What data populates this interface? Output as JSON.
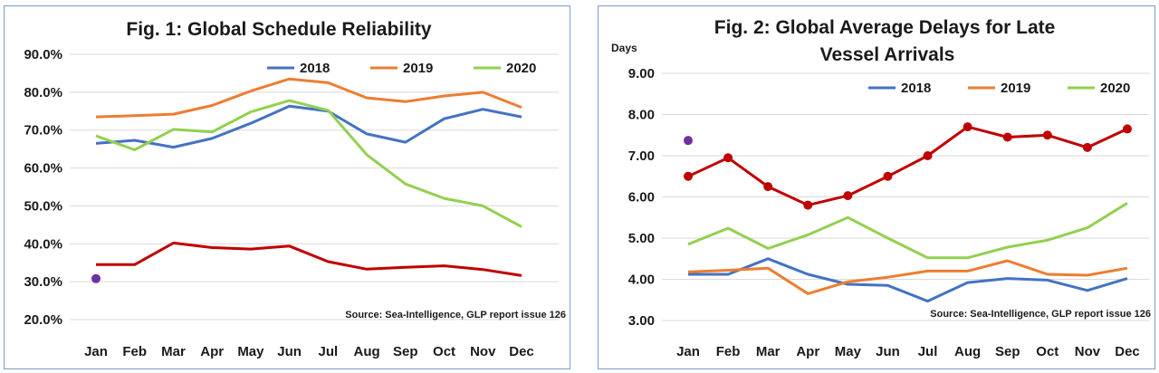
{
  "chart_data": [
    {
      "type": "line",
      "title": "Fig. 1: Global Schedule Reliability",
      "ylabel": "",
      "xlabel": "",
      "ylim": [
        20,
        90
      ],
      "y_ticks": [
        "90.0%",
        "80.0%",
        "70.0%",
        "60.0%",
        "50.0%",
        "40.0%",
        "30.0%",
        "20.0%"
      ],
      "y_tick_values": [
        90,
        80,
        70,
        60,
        50,
        40,
        30,
        20
      ],
      "categories": [
        "Jan",
        "Feb",
        "Mar",
        "Apr",
        "May",
        "Jun",
        "Jul",
        "Aug",
        "Sep",
        "Oct",
        "Nov",
        "Dec"
      ],
      "legend": [
        "2018",
        "2019",
        "2020"
      ],
      "source": "Source: Sea-Intelligence, GLP report issue 126",
      "series": [
        {
          "name": "2018",
          "color": "#4472c4",
          "values": [
            66.5,
            67.3,
            65.5,
            67.8,
            71.8,
            76.3,
            75.0,
            69.0,
            66.8,
            73.0,
            75.5,
            73.5
          ]
        },
        {
          "name": "2019",
          "color": "#ed7d31",
          "values": [
            73.5,
            73.8,
            74.2,
            76.5,
            80.3,
            83.5,
            82.5,
            78.5,
            77.5,
            79.0,
            80.0,
            76.0
          ]
        },
        {
          "name": "2020",
          "color": "#92d050",
          "values": [
            68.5,
            64.8,
            70.2,
            69.5,
            74.8,
            77.8,
            75.2,
            63.5,
            55.8,
            52.0,
            50.0,
            44.5
          ]
        },
        {
          "name": "",
          "color": "#c00000",
          "values": [
            34.5,
            34.5,
            40.2,
            39.0,
            38.6,
            39.4,
            35.3,
            33.3,
            33.8,
            34.2,
            33.2,
            31.6
          ]
        }
      ],
      "extra_point": {
        "category": "Jan",
        "value": 30.8,
        "color": "#7030a0"
      }
    },
    {
      "type": "line",
      "title": "Fig. 2: Global Average Delays for Late Vessel Arrivals",
      "title_lines": [
        "Fig. 2: Global Average Delays for Late",
        "Vessel Arrivals"
      ],
      "ylabel": "Days",
      "xlabel": "",
      "ylim": [
        3,
        9
      ],
      "y_ticks": [
        "9.00",
        "8.00",
        "7.00",
        "6.00",
        "5.00",
        "4.00",
        "3.00"
      ],
      "y_tick_values": [
        9,
        8,
        7,
        6,
        5,
        4,
        3
      ],
      "categories": [
        "Jan",
        "Feb",
        "Mar",
        "Apr",
        "May",
        "Jun",
        "Jul",
        "Aug",
        "Sep",
        "Oct",
        "Nov",
        "Dec"
      ],
      "legend": [
        "2018",
        "2019",
        "2020"
      ],
      "source": "Source: Sea-Intelligence, GLP report issue 126",
      "series": [
        {
          "name": "2018",
          "color": "#4472c4",
          "values": [
            4.12,
            4.12,
            4.5,
            4.12,
            3.88,
            3.85,
            3.47,
            3.92,
            4.02,
            3.98,
            3.73,
            4.02
          ]
        },
        {
          "name": "2019",
          "color": "#ed7d31",
          "values": [
            4.18,
            4.22,
            4.27,
            3.65,
            3.94,
            4.05,
            4.2,
            4.2,
            4.45,
            4.12,
            4.1,
            4.27
          ]
        },
        {
          "name": "2020",
          "color": "#92d050",
          "values": [
            4.85,
            5.24,
            4.75,
            5.08,
            5.5,
            5.0,
            4.52,
            4.52,
            4.78,
            4.95,
            5.25,
            5.85
          ]
        },
        {
          "name": "",
          "color": "#c00000",
          "markers": true,
          "values": [
            6.5,
            6.95,
            6.25,
            5.8,
            6.03,
            6.5,
            7.0,
            7.7,
            7.45,
            7.5,
            7.2,
            7.65
          ]
        }
      ],
      "extra_point": {
        "category": "Jan",
        "value": 7.37,
        "color": "#7030a0"
      }
    }
  ]
}
